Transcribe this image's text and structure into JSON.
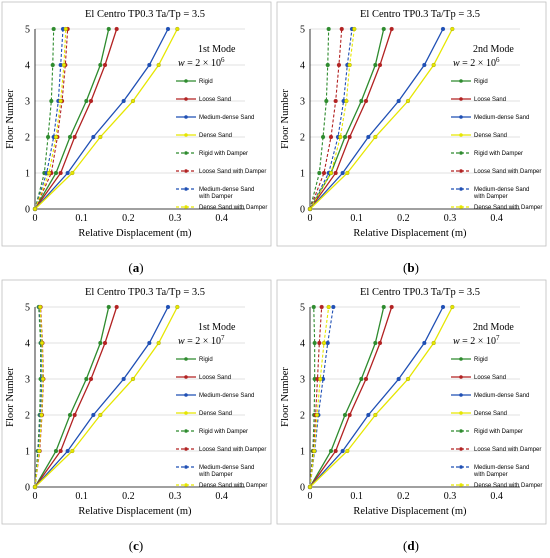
{
  "chart_data": [
    {
      "type": "line",
      "caption": "(a)",
      "title": "El Centro TP0.3   Ta/Tp = 3.5",
      "mode_label": "1st Mode",
      "w_label": "w = 2 × 10",
      "w_exp": "6",
      "xlabel": "Relative Displacement (m)",
      "ylabel": "Floor Number",
      "xlim": [
        0,
        0.45
      ],
      "ylim": [
        0,
        5
      ],
      "xticks": [
        "0",
        "0.1",
        "0.2",
        "0.3",
        "0.4"
      ],
      "yticks": [
        "0",
        "1",
        "2",
        "3",
        "4",
        "5"
      ],
      "y": [
        0,
        1,
        2,
        3,
        4,
        5
      ],
      "series": [
        {
          "name": "Rigid",
          "color": "#2e8b2e",
          "dash": false,
          "values": [
            0,
            0.045,
            0.075,
            0.11,
            0.14,
            0.158
          ]
        },
        {
          "name": "Loose Sand",
          "color": "#b22222",
          "dash": false,
          "values": [
            0,
            0.055,
            0.085,
            0.12,
            0.15,
            0.175
          ]
        },
        {
          "name": "Medium-dense Sand",
          "color": "#1f4fb4",
          "dash": false,
          "values": [
            0,
            0.07,
            0.125,
            0.19,
            0.245,
            0.285
          ]
        },
        {
          "name": "Dense Sand",
          "color": "#e6e600",
          "dash": false,
          "values": [
            0,
            0.08,
            0.14,
            0.21,
            0.265,
            0.305
          ]
        },
        {
          "name": "Rigid with Damper",
          "color": "#2e8b2e",
          "dash": true,
          "values": [
            0,
            0.02,
            0.028,
            0.035,
            0.038,
            0.04
          ]
        },
        {
          "name": "Loose Sand with Damper",
          "color": "#b22222",
          "dash": true,
          "values": [
            0,
            0.035,
            0.048,
            0.058,
            0.065,
            0.07
          ]
        },
        {
          "name": "Medium-dense Sand with Damper",
          "color": "#1f4fb4",
          "dash": true,
          "values": [
            0,
            0.025,
            0.04,
            0.05,
            0.055,
            0.06
          ]
        },
        {
          "name": "Dense Sand with Damper",
          "color": "#e6e600",
          "dash": true,
          "values": [
            0,
            0.03,
            0.045,
            0.055,
            0.062,
            0.066
          ]
        }
      ]
    },
    {
      "type": "line",
      "caption": "(b)",
      "title": "El Centro TP0.3   Ta/Tp = 3.5",
      "mode_label": "2nd Mode",
      "w_label": "w = 2 × 10",
      "w_exp": "6",
      "xlabel": "Relative Displacement (m)",
      "ylabel": "Floor Number",
      "xlim": [
        0,
        0.45
      ],
      "ylim": [
        0,
        5
      ],
      "xticks": [
        "0",
        "0.1",
        "0.2",
        "0.3",
        "0.4"
      ],
      "yticks": [
        "0",
        "1",
        "2",
        "3",
        "4",
        "5"
      ],
      "y": [
        0,
        1,
        2,
        3,
        4,
        5
      ],
      "series": [
        {
          "name": "Rigid",
          "color": "#2e8b2e",
          "dash": false,
          "values": [
            0,
            0.045,
            0.075,
            0.11,
            0.14,
            0.158
          ]
        },
        {
          "name": "Loose Sand",
          "color": "#b22222",
          "dash": false,
          "values": [
            0,
            0.055,
            0.085,
            0.12,
            0.15,
            0.175
          ]
        },
        {
          "name": "Medium-dense Sand",
          "color": "#1f4fb4",
          "dash": false,
          "values": [
            0,
            0.07,
            0.125,
            0.19,
            0.245,
            0.285
          ]
        },
        {
          "name": "Dense Sand",
          "color": "#e6e600",
          "dash": false,
          "values": [
            0,
            0.08,
            0.14,
            0.21,
            0.265,
            0.305
          ]
        },
        {
          "name": "Rigid with Damper",
          "color": "#2e8b2e",
          "dash": true,
          "values": [
            0,
            0.02,
            0.028,
            0.035,
            0.038,
            0.04
          ]
        },
        {
          "name": "Loose Sand with Damper",
          "color": "#b22222",
          "dash": true,
          "values": [
            0,
            0.03,
            0.045,
            0.055,
            0.062,
            0.068
          ]
        },
        {
          "name": "Medium-dense Sand with Damper",
          "color": "#1f4fb4",
          "dash": true,
          "values": [
            0,
            0.04,
            0.06,
            0.072,
            0.08,
            0.09
          ]
        },
        {
          "name": "Dense Sand with Damper",
          "color": "#e6e600",
          "dash": true,
          "values": [
            0,
            0.045,
            0.065,
            0.078,
            0.085,
            0.095
          ]
        }
      ]
    },
    {
      "type": "line",
      "caption": "(c)",
      "title": "El Centro TP0.3   Ta/Tp = 3.5",
      "mode_label": "1st Mode",
      "w_label": "w = 2 × 10",
      "w_exp": "7",
      "xlabel": "Relative Displacement (m)",
      "ylabel": "Floor Number",
      "xlim": [
        0,
        0.45
      ],
      "ylim": [
        0,
        5
      ],
      "xticks": [
        "0",
        "0.1",
        "0.2",
        "0.3",
        "0.4"
      ],
      "yticks": [
        "0",
        "1",
        "2",
        "3",
        "4",
        "5"
      ],
      "y": [
        0,
        1,
        2,
        3,
        4,
        5
      ],
      "series": [
        {
          "name": "Rigid",
          "color": "#2e8b2e",
          "dash": false,
          "values": [
            0,
            0.045,
            0.075,
            0.11,
            0.14,
            0.158
          ]
        },
        {
          "name": "Loose Sand",
          "color": "#b22222",
          "dash": false,
          "values": [
            0,
            0.055,
            0.085,
            0.12,
            0.15,
            0.175
          ]
        },
        {
          "name": "Medium-dense Sand",
          "color": "#1f4fb4",
          "dash": false,
          "values": [
            0,
            0.07,
            0.125,
            0.19,
            0.245,
            0.285
          ]
        },
        {
          "name": "Dense Sand",
          "color": "#e6e600",
          "dash": false,
          "values": [
            0,
            0.08,
            0.14,
            0.21,
            0.265,
            0.305
          ]
        },
        {
          "name": "Rigid with Damper",
          "color": "#2e8b2e",
          "dash": true,
          "values": [
            0,
            0.006,
            0.01,
            0.012,
            0.012,
            0.008
          ]
        },
        {
          "name": "Loose Sand with Damper",
          "color": "#b22222",
          "dash": true,
          "values": [
            0,
            0.01,
            0.015,
            0.018,
            0.016,
            0.012
          ]
        },
        {
          "name": "Medium-dense Sand with Damper",
          "color": "#1f4fb4",
          "dash": true,
          "values": [
            0,
            0.008,
            0.012,
            0.015,
            0.014,
            0.01
          ]
        },
        {
          "name": "Dense Sand with Damper",
          "color": "#e6e600",
          "dash": true,
          "values": [
            0,
            0.009,
            0.014,
            0.017,
            0.015,
            0.011
          ]
        }
      ]
    },
    {
      "type": "line",
      "caption": "(d)",
      "title": "El Centro TP0.3   Ta/Tp = 3.5",
      "mode_label": "2nd Mode",
      "w_label": "w = 2 × 10",
      "w_exp": "7",
      "xlabel": "Relative Displacement (m)",
      "ylabel": "Floor Number",
      "xlim": [
        0,
        0.45
      ],
      "ylim": [
        0,
        5
      ],
      "xticks": [
        "0",
        "0.1",
        "0.2",
        "0.3",
        "0.4"
      ],
      "yticks": [
        "0",
        "1",
        "2",
        "3",
        "4",
        "5"
      ],
      "y": [
        0,
        1,
        2,
        3,
        4,
        5
      ],
      "series": [
        {
          "name": "Rigid",
          "color": "#2e8b2e",
          "dash": false,
          "values": [
            0,
            0.045,
            0.075,
            0.11,
            0.14,
            0.158
          ]
        },
        {
          "name": "Loose Sand",
          "color": "#b22222",
          "dash": false,
          "values": [
            0,
            0.055,
            0.085,
            0.12,
            0.15,
            0.175
          ]
        },
        {
          "name": "Medium-dense Sand",
          "color": "#1f4fb4",
          "dash": false,
          "values": [
            0,
            0.07,
            0.125,
            0.19,
            0.245,
            0.285
          ]
        },
        {
          "name": "Dense Sand",
          "color": "#e6e600",
          "dash": false,
          "values": [
            0,
            0.08,
            0.14,
            0.21,
            0.265,
            0.305
          ]
        },
        {
          "name": "Rigid with Damper",
          "color": "#2e8b2e",
          "dash": true,
          "values": [
            0,
            0.006,
            0.009,
            0.01,
            0.01,
            0.008
          ]
        },
        {
          "name": "Loose Sand with Damper",
          "color": "#b22222",
          "dash": true,
          "values": [
            0,
            0.008,
            0.012,
            0.016,
            0.02,
            0.025
          ]
        },
        {
          "name": "Medium-dense Sand with Damper",
          "color": "#1f4fb4",
          "dash": true,
          "values": [
            0,
            0.01,
            0.018,
            0.028,
            0.038,
            0.05
          ]
        },
        {
          "name": "Dense Sand with Damper",
          "color": "#e6e600",
          "dash": true,
          "values": [
            0,
            0.009,
            0.015,
            0.022,
            0.03,
            0.04
          ]
        }
      ]
    }
  ]
}
